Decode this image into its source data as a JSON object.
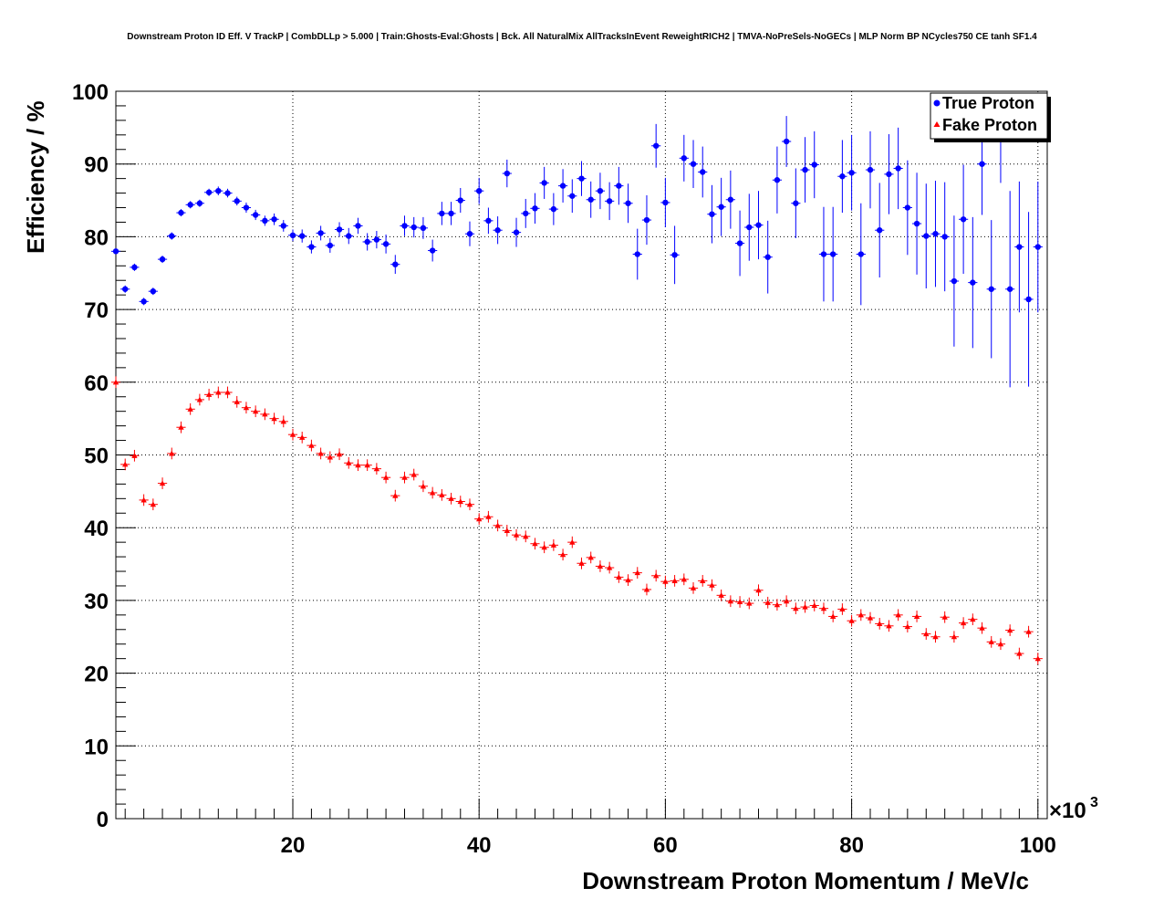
{
  "chart_data": {
    "type": "scatter",
    "title": "Downstream Proton ID Eff. V TrackP | CombDLLp > 5.000 | Train:Ghosts-Eval:Ghosts | Bck. All NaturalMix AllTracksInEvent ReweightRICH2 | TMVA-NoPreSels-NoGECs | MLP Norm BP NCycles750 CE tanh SF1.4",
    "xlabel": "Downstream Proton Momentum / MeV/c",
    "ylabel": "Efficiency / %",
    "x_multiplier_label": "×10",
    "x_multiplier_exponent": "3",
    "xlim": [
      1,
      101
    ],
    "ylim": [
      0,
      100
    ],
    "x_ticks": [
      20,
      40,
      60,
      80,
      100
    ],
    "y_ticks": [
      0,
      10,
      20,
      30,
      40,
      50,
      60,
      70,
      80,
      90,
      100
    ],
    "grid": true,
    "legend_position": "top-right",
    "series": [
      {
        "name": "True Proton",
        "color": "#0000ff",
        "marker": "circle",
        "x": [
          1.0,
          2.0,
          3.0,
          4.0,
          5.0,
          6.0,
          7.0,
          8.0,
          9.0,
          10.0,
          11.0,
          12.0,
          13.0,
          14.0,
          15.0,
          16.0,
          17.0,
          18.0,
          19.0,
          20.0,
          21.0,
          22.0,
          23.0,
          24.0,
          25.0,
          26.0,
          27.0,
          28.0,
          29.0,
          30.0,
          31.0,
          32.0,
          33.0,
          34.0,
          35.0,
          36.0,
          37.0,
          38.0,
          39.0,
          40.0,
          41.0,
          42.0,
          43.0,
          44.0,
          45.0,
          46.0,
          47.0,
          48.0,
          49.0,
          50.0,
          51.0,
          52.0,
          53.0,
          54.0,
          55.0,
          56.0,
          57.0,
          58.0,
          59.0,
          60.0,
          61.0,
          62.0,
          63.0,
          64.0,
          65.0,
          66.0,
          67.0,
          68.0,
          69.0,
          70.0,
          71.0,
          72.0,
          73.0,
          74.0,
          75.0,
          76.0,
          77.0,
          78.0,
          79.0,
          80.0,
          81.0,
          82.0,
          83.0,
          84.0,
          85.0,
          86.0,
          87.0,
          88.0,
          89.0,
          90.0,
          91.0,
          92.0,
          93.0,
          94.0,
          95.0,
          96.0,
          97.0,
          98.0,
          99.0,
          100.0
        ],
        "y": [
          78.0,
          72.8,
          75.8,
          71.1,
          72.5,
          76.9,
          80.1,
          83.3,
          84.4,
          84.6,
          86.1,
          86.3,
          86.0,
          84.9,
          84.0,
          83.0,
          82.2,
          82.4,
          81.5,
          80.2,
          80.1,
          78.6,
          80.5,
          78.8,
          81.0,
          80.1,
          81.5,
          79.3,
          79.6,
          79.0,
          76.2,
          81.5,
          81.3,
          81.2,
          78.1,
          83.2,
          83.2,
          85.0,
          80.4,
          86.3,
          82.2,
          80.9,
          88.7,
          80.6,
          83.2,
          83.9,
          87.4,
          83.8,
          87.0,
          85.6,
          88.0,
          85.1,
          86.3,
          84.9,
          87.0,
          84.6,
          77.6,
          82.3,
          92.5,
          84.7,
          77.5,
          90.8,
          90.0,
          88.9,
          83.1,
          84.1,
          85.1,
          79.1,
          81.3,
          81.6,
          77.2,
          87.8,
          93.1,
          84.6,
          89.2,
          89.9,
          77.6,
          77.6,
          88.3,
          88.8,
          77.6,
          89.2,
          80.9,
          88.6,
          89.4,
          84.0,
          81.8,
          80.1,
          80.4,
          80.0,
          73.9,
          82.4,
          73.7,
          90.0,
          72.8,
          93.4,
          72.8,
          78.6,
          71.4,
          78.6
        ],
        "err": [
          0.4,
          0.5,
          0.5,
          0.5,
          0.5,
          0.5,
          0.5,
          0.5,
          0.5,
          0.5,
          0.5,
          0.6,
          0.6,
          0.6,
          0.7,
          0.7,
          0.7,
          0.8,
          0.8,
          0.8,
          0.9,
          0.9,
          1.0,
          1.0,
          1.0,
          1.1,
          1.1,
          1.2,
          1.2,
          1.3,
          1.3,
          1.4,
          1.4,
          1.5,
          1.5,
          1.6,
          1.6,
          1.7,
          1.7,
          1.8,
          1.8,
          1.9,
          1.9,
          2.0,
          2.0,
          2.1,
          2.2,
          2.2,
          2.3,
          2.3,
          2.4,
          2.5,
          2.5,
          2.6,
          2.6,
          2.7,
          3.5,
          3.4,
          3.0,
          3.4,
          4.0,
          3.2,
          3.3,
          3.5,
          4.0,
          4.0,
          4.0,
          4.5,
          4.6,
          4.7,
          5.0,
          4.6,
          3.5,
          4.8,
          4.5,
          4.6,
          6.5,
          6.5,
          5.0,
          5.2,
          7.0,
          5.3,
          6.5,
          5.5,
          5.6,
          6.5,
          7.0,
          7.2,
          7.3,
          7.5,
          9.0,
          7.5,
          9.0,
          7.0,
          9.5,
          6.0,
          13.5,
          9.0,
          12.0,
          9.0
        ]
      },
      {
        "name": "Fake Proton",
        "color": "#ff0000",
        "marker": "triangle",
        "x": [
          1.0,
          2.0,
          3.0,
          4.0,
          5.0,
          6.0,
          7.0,
          8.0,
          9.0,
          10.0,
          11.0,
          12.0,
          13.0,
          14.0,
          15.0,
          16.0,
          17.0,
          18.0,
          19.0,
          20.0,
          21.0,
          22.0,
          23.0,
          24.0,
          25.0,
          26.0,
          27.0,
          28.0,
          29.0,
          30.0,
          31.0,
          32.0,
          33.0,
          34.0,
          35.0,
          36.0,
          37.0,
          38.0,
          39.0,
          40.0,
          41.0,
          42.0,
          43.0,
          44.0,
          45.0,
          46.0,
          47.0,
          48.0,
          49.0,
          50.0,
          51.0,
          52.0,
          53.0,
          54.0,
          55.0,
          56.0,
          57.0,
          58.0,
          59.0,
          60.0,
          61.0,
          62.0,
          63.0,
          64.0,
          65.0,
          66.0,
          67.0,
          68.0,
          69.0,
          70.0,
          71.0,
          72.0,
          73.0,
          74.0,
          75.0,
          76.0,
          77.0,
          78.0,
          79.0,
          80.0,
          81.0,
          82.0,
          83.0,
          84.0,
          85.0,
          86.0,
          87.0,
          88.0,
          89.0,
          90.0,
          91.0,
          92.0,
          93.0,
          94.0,
          95.0,
          96.0,
          97.0,
          98.0,
          99.0,
          100.0
        ],
        "y": [
          60.0,
          48.7,
          49.9,
          43.8,
          43.2,
          46.1,
          50.2,
          53.8,
          56.3,
          57.6,
          58.3,
          58.6,
          58.6,
          57.3,
          56.5,
          56.0,
          55.6,
          55.0,
          54.6,
          52.8,
          52.4,
          51.3,
          50.2,
          49.7,
          50.1,
          48.9,
          48.6,
          48.6,
          48.1,
          46.9,
          44.4,
          46.9,
          47.3,
          45.7,
          44.8,
          44.5,
          44.0,
          43.6,
          43.2,
          41.2,
          41.5,
          40.3,
          39.6,
          39.0,
          38.8,
          37.8,
          37.3,
          37.6,
          36.3,
          38.0,
          35.1,
          35.9,
          34.7,
          34.5,
          33.2,
          32.8,
          33.8,
          31.5,
          33.4,
          32.6,
          32.7,
          32.9,
          31.7,
          32.7,
          32.1,
          30.7,
          29.9,
          29.8,
          29.6,
          31.4,
          29.7,
          29.4,
          29.9,
          28.9,
          29.1,
          29.3,
          28.9,
          27.8,
          28.8,
          27.2,
          28.0,
          27.6,
          26.8,
          26.5,
          28.0,
          26.4,
          27.8,
          25.4,
          25.0,
          27.7,
          25.0,
          26.9,
          27.4,
          26.2,
          24.3,
          24.0,
          25.9,
          22.7,
          25.7,
          22.0
        ]
      }
    ]
  },
  "legend": {
    "true_label": "True Proton",
    "fake_label": "Fake Proton"
  }
}
